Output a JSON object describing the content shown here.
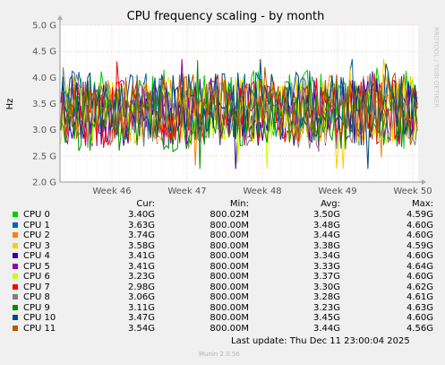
{
  "chart_data": {
    "type": "line",
    "title": "CPU frequency scaling - by month",
    "ylabel": "Hz",
    "xlabel": "",
    "ylim": [
      2.0,
      5.0
    ],
    "yticks": [
      "2.0 G",
      "2.5 G",
      "3.0 G",
      "3.5 G",
      "4.0 G",
      "4.5 G",
      "5.0 G"
    ],
    "xticks": [
      "Week 46",
      "Week 47",
      "Week 48",
      "Week 49",
      "Week 50"
    ],
    "grid": true,
    "legend_placement": "bottom",
    "series": [
      {
        "name": "CPU 0",
        "color": "#00cc00",
        "cur": "3.40G",
        "min": "800.02M",
        "avg": "3.50G",
        "max": "4.59G"
      },
      {
        "name": "CPU 1",
        "color": "#0066b3",
        "cur": "3.63G",
        "min": "800.00M",
        "avg": "3.48G",
        "max": "4.60G"
      },
      {
        "name": "CPU 2",
        "color": "#ff8000",
        "cur": "3.74G",
        "min": "800.00M",
        "avg": "3.44G",
        "max": "4.60G"
      },
      {
        "name": "CPU 3",
        "color": "#ffcc00",
        "cur": "3.58G",
        "min": "800.00M",
        "avg": "3.38G",
        "max": "4.59G"
      },
      {
        "name": "CPU 4",
        "color": "#330099",
        "cur": "3.41G",
        "min": "800.00M",
        "avg": "3.34G",
        "max": "4.60G"
      },
      {
        "name": "CPU 5",
        "color": "#990099",
        "cur": "3.41G",
        "min": "800.00M",
        "avg": "3.33G",
        "max": "4.64G"
      },
      {
        "name": "CPU 6",
        "color": "#ccff00",
        "cur": "3.23G",
        "min": "800.00M",
        "avg": "3.37G",
        "max": "4.60G"
      },
      {
        "name": "CPU 7",
        "color": "#ff0000",
        "cur": "2.98G",
        "min": "800.00M",
        "avg": "3.30G",
        "max": "4.62G"
      },
      {
        "name": "CPU 8",
        "color": "#808080",
        "cur": "3.06G",
        "min": "800.00M",
        "avg": "3.28G",
        "max": "4.61G"
      },
      {
        "name": "CPU 9",
        "color": "#008f00",
        "cur": "3.11G",
        "min": "800.00M",
        "avg": "3.23G",
        "max": "4.63G"
      },
      {
        "name": "CPU 10",
        "color": "#00487d",
        "cur": "3.47G",
        "min": "800.00M",
        "avg": "3.45G",
        "max": "4.60G"
      },
      {
        "name": "CPU 11",
        "color": "#b35a00",
        "cur": "3.54G",
        "min": "800.00M",
        "avg": "3.44G",
        "max": "4.56G"
      }
    ]
  },
  "legend": {
    "headers": {
      "cur": "Cur:",
      "min": "Min:",
      "avg": "Avg:",
      "max": "Max:"
    }
  },
  "footer": {
    "last_update": "Last update: Thu Dec 11 23:00:04 2025",
    "munin_version": "Munin 2.0.56",
    "rrd_tag": "RRDTOOL / TOBI OETIKER"
  }
}
